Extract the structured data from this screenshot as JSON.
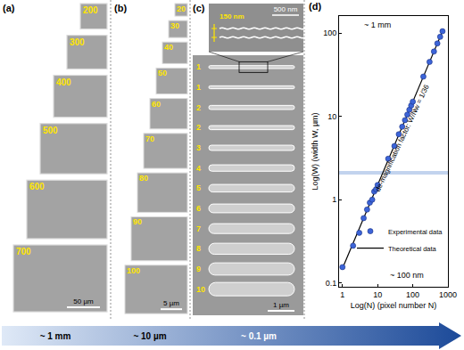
{
  "panels": [
    {
      "label": "(a)",
      "tiles": [
        200,
        300,
        400,
        500,
        600,
        700
      ],
      "scale_bar": "50 µm"
    },
    {
      "label": "(b)",
      "tiles": [
        20,
        30,
        40,
        50,
        60,
        70,
        80,
        90,
        100
      ],
      "scale_bar": "5 µm"
    },
    {
      "label": "(c)",
      "inset": {
        "size_mark": "150 nm",
        "scale_bar": "500 nm"
      },
      "lines": [
        1,
        1,
        2,
        2,
        3,
        4,
        5,
        6,
        7,
        8,
        9,
        10
      ],
      "scale_bar": "1 µm"
    }
  ],
  "chart_data": {
    "type": "scatter",
    "panel_label": "(d)",
    "x_label": "Log(N) (pixel number N)",
    "y_label": "Log(W) (width W, µm)",
    "log": true,
    "xlim": [
      0.8,
      1000
    ],
    "ylim": [
      0.09,
      160
    ],
    "xticks": [
      1,
      10,
      100,
      1000
    ],
    "yticks": [
      0.1,
      1,
      10,
      100
    ],
    "legend": "bottom right",
    "series": [
      {
        "name": "Experimental data",
        "type": "scatter",
        "marker": "circle",
        "color": "#3c64d8",
        "x": [
          1,
          2,
          3,
          4,
          5,
          6,
          7,
          8,
          9,
          10,
          20,
          30,
          40,
          50,
          60,
          70,
          80,
          90,
          100,
          200,
          300,
          400,
          500,
          600,
          700
        ],
        "values": [
          0.155,
          0.28,
          0.4,
          0.6,
          0.76,
          0.92,
          1.0,
          1.25,
          1.33,
          1.5,
          3.1,
          4.4,
          6.1,
          7.5,
          9,
          10.5,
          12,
          13.5,
          15,
          30,
          45,
          60,
          75,
          90,
          105
        ]
      },
      {
        "name": "Theoretical data",
        "type": "line",
        "line_style": "solid",
        "color": "#000000",
        "x": [
          1,
          700
        ],
        "values": [
          0.15,
          105
        ]
      }
    ],
    "bands": [
      {
        "label": "~ 1 mm",
        "range": [
          100,
          160
        ]
      },
      {
        "label": "~ 100 nm",
        "range": [
          0.09,
          0.17
        ]
      }
    ],
    "annotations": [
      "de-magnification factor: W/Nw = 1/36"
    ]
  },
  "scale_arrow": [
    "~ 1 mm",
    "~ 10 µm",
    "~ 0.1 µm"
  ]
}
